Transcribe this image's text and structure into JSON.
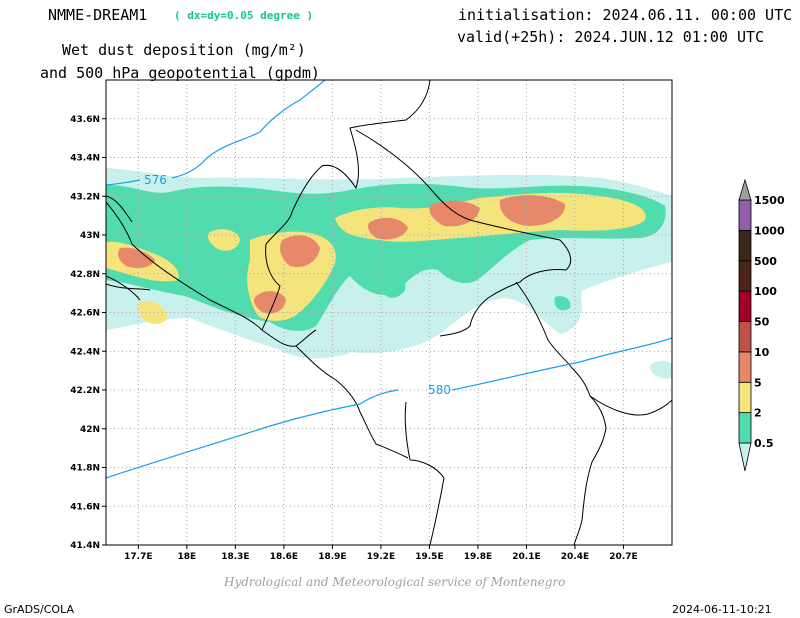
{
  "header": {
    "model_name": "NMME-DREAM1",
    "model_resolution": "( dx=dy=0.05 degree )",
    "title_line1": "Wet dust deposition (mg/m²)",
    "title_line2": "and 500 hPa geopotential (gpdm)",
    "initialisation": "initialisation: 2024.06.11. 00:00 UTC",
    "valid": "valid(+25h): 2024.JUN.12 01:00 UTC"
  },
  "map": {
    "lon_ticks": [
      "17.7E",
      "18E",
      "18.3E",
      "18.6E",
      "18.9E",
      "19.2E",
      "19.5E",
      "19.8E",
      "20.1E",
      "20.4E",
      "20.7E"
    ],
    "lat_ticks": [
      "41.4N",
      "41.6N",
      "41.8N",
      "42N",
      "42.2N",
      "42.4N",
      "42.6N",
      "42.8N",
      "43N",
      "43.2N",
      "43.4N",
      "43.6N"
    ],
    "lon_range": [
      17.5,
      21.0
    ],
    "lat_range": [
      41.4,
      43.8
    ],
    "contours": [
      {
        "label": "576",
        "color": "#1aa0e6"
      },
      {
        "label": "580",
        "color": "#1aa0e6"
      }
    ]
  },
  "legend": {
    "labels": [
      "0.5",
      "2",
      "5",
      "10",
      "50",
      "100",
      "500",
      "1000",
      "1500"
    ],
    "colors": [
      "#c8f0ec",
      "#50dcae",
      "#f5e47c",
      "#e8886a",
      "#c0504a",
      "#a00028",
      "#4c2418",
      "#3c2818",
      "#9060a8",
      "#a0a0a0"
    ]
  },
  "footer": {
    "credit": "Hydrological and Meteorological service of Montenegro",
    "left": "GrADS/COLA",
    "right": "2024-06-11-10:21"
  }
}
